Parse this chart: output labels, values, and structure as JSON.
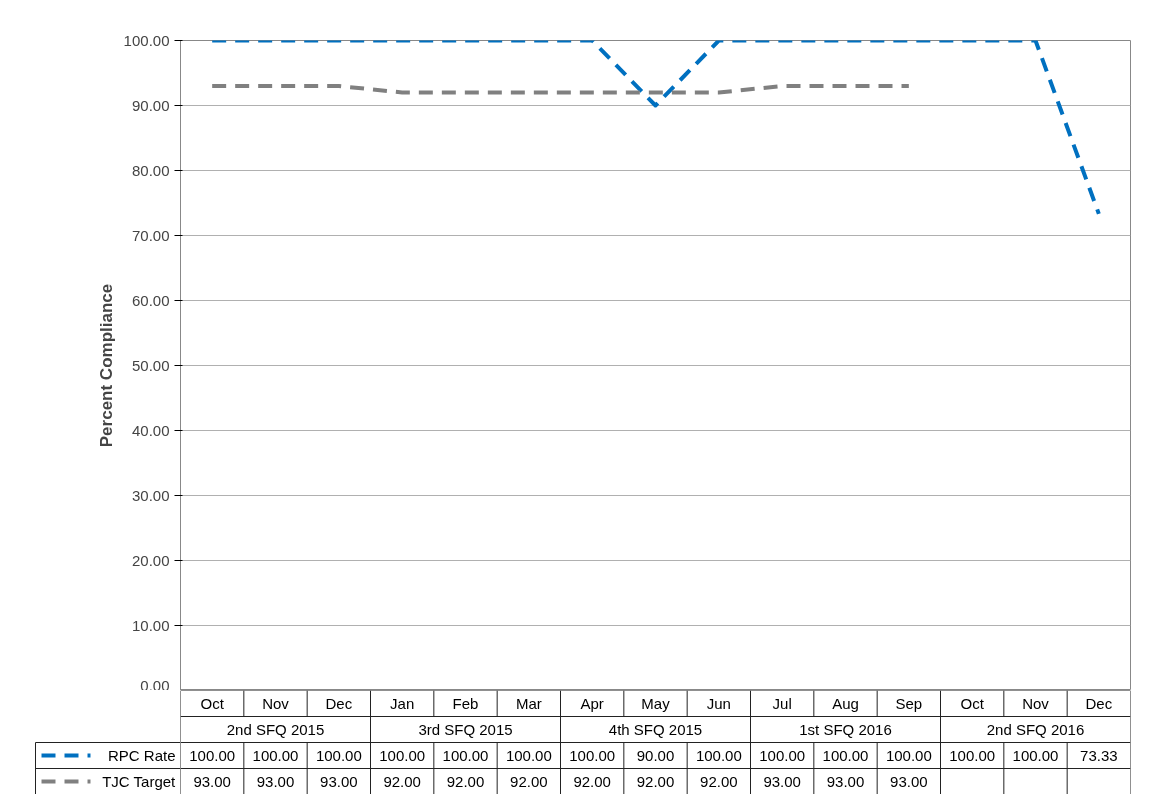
{
  "chart_data": {
    "type": "line",
    "ylabel": "Percent Compliance",
    "categories": [
      "Oct",
      "Nov",
      "Dec",
      "Jan",
      "Feb",
      "Mar",
      "Apr",
      "May",
      "Jun",
      "Jul",
      "Aug",
      "Sep",
      "Oct",
      "Nov",
      "Dec"
    ],
    "annotations": [
      "2nd SFQ 2015",
      "3rd SFQ 2015",
      "4th SFQ 2015",
      "1st SFQ 2016",
      "2nd SFQ 2016"
    ],
    "series": [
      {
        "name": "RPC Rate",
        "color": "#0070c0",
        "values": [
          100,
          100,
          100,
          100,
          100,
          100,
          100,
          90,
          100,
          100,
          100,
          100,
          100,
          100,
          73.33
        ],
        "value_labels": [
          "100.00",
          "100.00",
          "100.00",
          "100.00",
          "100.00",
          "100.00",
          "100.00",
          "90.00",
          "100.00",
          "100.00",
          "100.00",
          "100.00",
          "100.00",
          "100.00",
          "73.33"
        ]
      },
      {
        "name": "TJC Target",
        "color": "#808080",
        "values": [
          93,
          93,
          93,
          92,
          92,
          92,
          92,
          92,
          92,
          93,
          93,
          93,
          null,
          null,
          null
        ],
        "value_labels": [
          "93.00",
          "93.00",
          "93.00",
          "92.00",
          "92.00",
          "92.00",
          "92.00",
          "92.00",
          "92.00",
          "93.00",
          "93.00",
          "93.00",
          null,
          null,
          null
        ]
      }
    ],
    "ylim": [
      0,
      100
    ],
    "yticks": [
      {
        "value": 0,
        "label": "0.00"
      },
      {
        "value": 10,
        "label": "10.00"
      },
      {
        "value": 20,
        "label": "20.00"
      },
      {
        "value": 30,
        "label": "30.00"
      },
      {
        "value": 40,
        "label": "40.00"
      },
      {
        "value": 50,
        "label": "50.00"
      },
      {
        "value": 60,
        "label": "60.00"
      },
      {
        "value": 70,
        "label": "70.00"
      },
      {
        "value": 80,
        "label": "80.00"
      },
      {
        "value": 90,
        "label": "90.00"
      },
      {
        "value": 100,
        "label": "100.00"
      }
    ],
    "grid": "y",
    "legend": "bottom",
    "line_style": "dashed",
    "marker": "none"
  }
}
